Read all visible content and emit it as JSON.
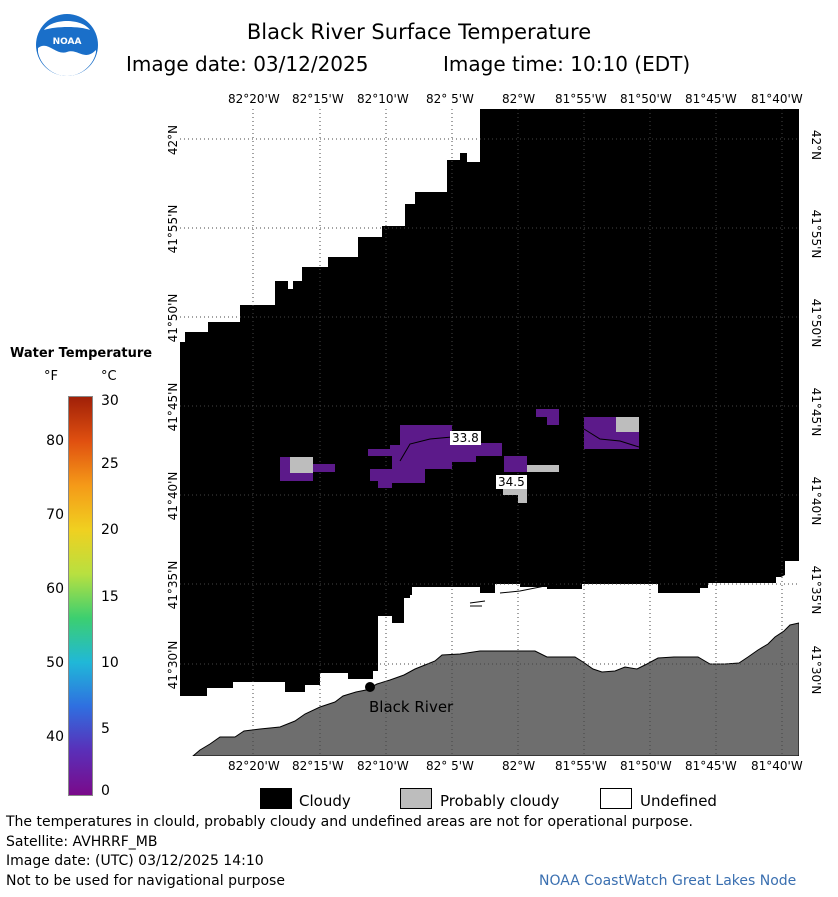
{
  "header": {
    "title": "Black River Surface Temperature",
    "image_date": "Image date: 03/12/2025",
    "image_time": "Image time: 10:10 (EDT)",
    "logo_text": "NOAA"
  },
  "map": {
    "lon_labels": [
      "82°20'W",
      "82°15'W",
      "82°10'W",
      "82° 5'W",
      "82°W",
      "81°55'W",
      "81°50'W",
      "81°45'W",
      "81°40'W"
    ],
    "lat_labels": [
      "42°N",
      "41°55'N",
      "41°50'N",
      "41°45'N",
      "41°40'N",
      "41°35'N",
      "41°30'N"
    ],
    "temp_labels": [
      "33.8",
      "34.5"
    ],
    "station_label": "Black River"
  },
  "legend": {
    "title": "Water Temperature",
    "unit_f": "°F",
    "unit_c": "°C",
    "f_ticks": [
      "80",
      "70",
      "60",
      "50",
      "40"
    ],
    "c_ticks": [
      "30",
      "25",
      "20",
      "15",
      "10",
      "5",
      "0"
    ],
    "colors": [
      "#7a0a8a",
      "#5a2fb8",
      "#2f6fe0",
      "#20b8d8",
      "#3ccf70",
      "#b8e040",
      "#f0d020",
      "#f59a18",
      "#e05010",
      "#a02008"
    ]
  },
  "key": {
    "cloudy": "Cloudy",
    "probably_cloudy": "Probably cloudy",
    "undefined": "Undefined"
  },
  "footer": {
    "disclaimer": "The temperatures in clould, probably cloudy and undefined areas are not for operational purpose.",
    "satellite": "Satellite: AVHRRF_MB",
    "utc_date": "Image date: (UTC) 03/12/2025  14:10",
    "nav_warning": "Not to be used for navigational purpose",
    "credit": "NOAA CoastWatch Great Lakes Node"
  }
}
